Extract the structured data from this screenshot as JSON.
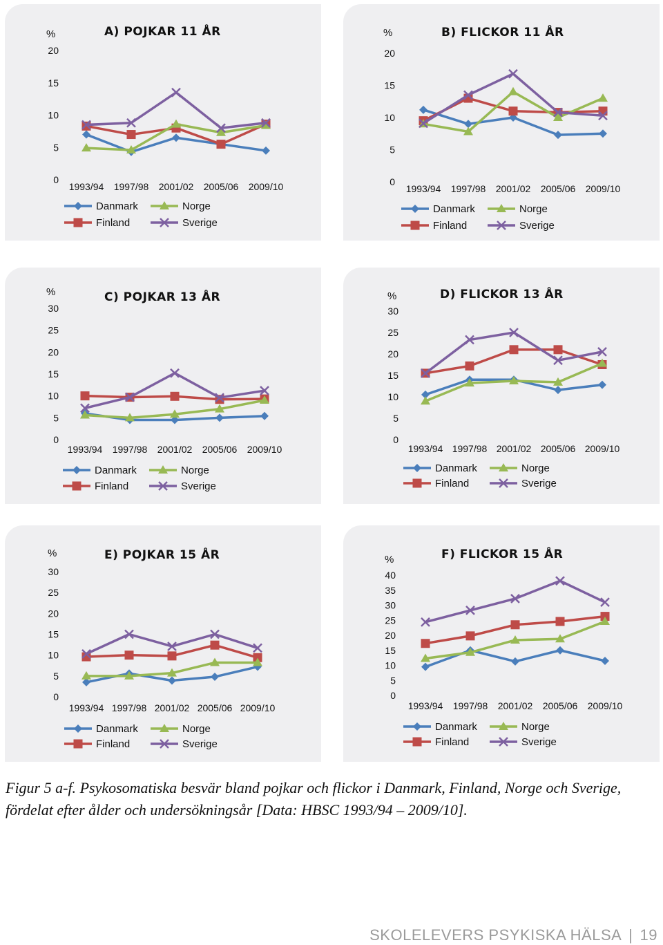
{
  "figure": {
    "caption_label": "Figur 5 a-f.",
    "caption_text": " Psykosomatiska besvär bland pojkar och flickor i Danmark, Finland, Norge och Sverige, fördelat efter ålder och undersökningsår [Data: HBSC 1993/94 – 2009/10]."
  },
  "footer": {
    "title": "SKOLELEVERS PSYKISKA HÄLSA",
    "page": "19"
  },
  "colors": {
    "Danmark": "#4a7ebb",
    "Finland": "#be4b48",
    "Norge": "#98b954",
    "Sverige": "#7d60a0"
  },
  "chart_data": [
    {
      "type": "line",
      "title": "A) POJKAR 11 ÅR",
      "ylabel": "%",
      "ylim": [
        0,
        20
      ],
      "yticks": [
        0,
        5,
        10,
        15,
        20
      ],
      "categories": [
        "1993/94",
        "1997/98",
        "2001/02",
        "2005/06",
        "2009/10"
      ],
      "series": [
        {
          "name": "Danmark",
          "values": [
            7,
            4.3,
            6.5,
            5.5,
            4.5
          ]
        },
        {
          "name": "Finland",
          "values": [
            8.3,
            7,
            8,
            5.5,
            8.6
          ]
        },
        {
          "name": "Norge",
          "values": [
            4.9,
            4.6,
            8.6,
            7.3,
            8.4
          ]
        },
        {
          "name": "Sverige",
          "values": [
            8.5,
            8.8,
            13.5,
            8,
            8.8
          ]
        }
      ]
    },
    {
      "type": "line",
      "title": "B) FLICKOR 11 ÅR",
      "ylabel": "%",
      "ylim": [
        0,
        20
      ],
      "yticks": [
        0,
        5,
        10,
        15,
        20
      ],
      "categories": [
        "1993/94",
        "1997/98",
        "2001/02",
        "2005/06",
        "2009/10"
      ],
      "series": [
        {
          "name": "Danmark",
          "values": [
            11.2,
            9,
            10,
            7.3,
            7.5
          ]
        },
        {
          "name": "Finland",
          "values": [
            9.5,
            13,
            11,
            10.8,
            11
          ]
        },
        {
          "name": "Norge",
          "values": [
            9,
            7.8,
            14,
            10,
            13
          ]
        },
        {
          "name": "Sverige",
          "values": [
            9.1,
            13.5,
            16.8,
            10.8,
            10.3
          ]
        }
      ]
    },
    {
      "type": "line",
      "title": "C) POJKAR 13 ÅR",
      "ylabel": "%",
      "ylim": [
        0,
        30
      ],
      "yticks": [
        0,
        5,
        10,
        15,
        20,
        25,
        30
      ],
      "categories": [
        "1993/94",
        "1997/98",
        "2001/02",
        "2005/06",
        "2009/10"
      ],
      "series": [
        {
          "name": "Danmark",
          "values": [
            6,
            4.5,
            4.5,
            5,
            5.4
          ]
        },
        {
          "name": "Finland",
          "values": [
            10,
            9.7,
            9.9,
            9.2,
            9.3
          ]
        },
        {
          "name": "Norge",
          "values": [
            5.6,
            5,
            5.8,
            7,
            9
          ]
        },
        {
          "name": "Sverige",
          "values": [
            7.2,
            9.7,
            15.2,
            9.6,
            11.2
          ]
        }
      ]
    },
    {
      "type": "line",
      "title": "D) FLICKOR 13 ÅR",
      "ylabel": "%",
      "ylim": [
        0,
        30
      ],
      "yticks": [
        0,
        5,
        10,
        15,
        20,
        25,
        30
      ],
      "categories": [
        "1993/94",
        "1997/98",
        "2001/02",
        "2005/06",
        "2009/10"
      ],
      "series": [
        {
          "name": "Danmark",
          "values": [
            10.5,
            14,
            14,
            11.6,
            12.8
          ]
        },
        {
          "name": "Finland",
          "values": [
            15.5,
            17.2,
            21,
            21,
            17.5
          ]
        },
        {
          "name": "Norge",
          "values": [
            9,
            13.2,
            13.7,
            13.4,
            17.8
          ]
        },
        {
          "name": "Sverige",
          "values": [
            15.5,
            23.3,
            25,
            18.5,
            20.5
          ]
        }
      ]
    },
    {
      "type": "line",
      "title": "E) POJKAR 15 ÅR",
      "ylabel": "%",
      "ylim": [
        0,
        30
      ],
      "yticks": [
        0,
        5,
        10,
        15,
        20,
        25,
        30
      ],
      "categories": [
        "1993/94",
        "1997/98",
        "2001/02",
        "2005/06",
        "2009/10"
      ],
      "series": [
        {
          "name": "Danmark",
          "values": [
            3.5,
            5.6,
            3.9,
            4.8,
            7.2
          ]
        },
        {
          "name": "Finland",
          "values": [
            9.6,
            10,
            9.8,
            12.4,
            9.4
          ]
        },
        {
          "name": "Norge",
          "values": [
            5,
            5,
            5.7,
            8.2,
            8.2
          ]
        },
        {
          "name": "Sverige",
          "values": [
            10.3,
            15,
            12.1,
            15,
            11.7
          ]
        }
      ]
    },
    {
      "type": "line",
      "title": "F) FLICKOR 15 ÅR",
      "ylabel": "%",
      "ylim": [
        0,
        40
      ],
      "yticks": [
        0,
        5,
        10,
        15,
        20,
        25,
        30,
        35,
        40
      ],
      "categories": [
        "1993/94",
        "1997/98",
        "2001/02",
        "2005/06",
        "2009/10"
      ],
      "series": [
        {
          "name": "Danmark",
          "values": [
            9.5,
            15,
            11.3,
            15,
            11.5
          ]
        },
        {
          "name": "Finland",
          "values": [
            17.3,
            19.8,
            23.5,
            24.6,
            26.3
          ]
        },
        {
          "name": "Norge",
          "values": [
            12.3,
            14.3,
            18.4,
            18.8,
            24.6
          ]
        },
        {
          "name": "Sverige",
          "values": [
            24.4,
            28.3,
            32.2,
            38.1,
            31
          ]
        }
      ]
    }
  ]
}
